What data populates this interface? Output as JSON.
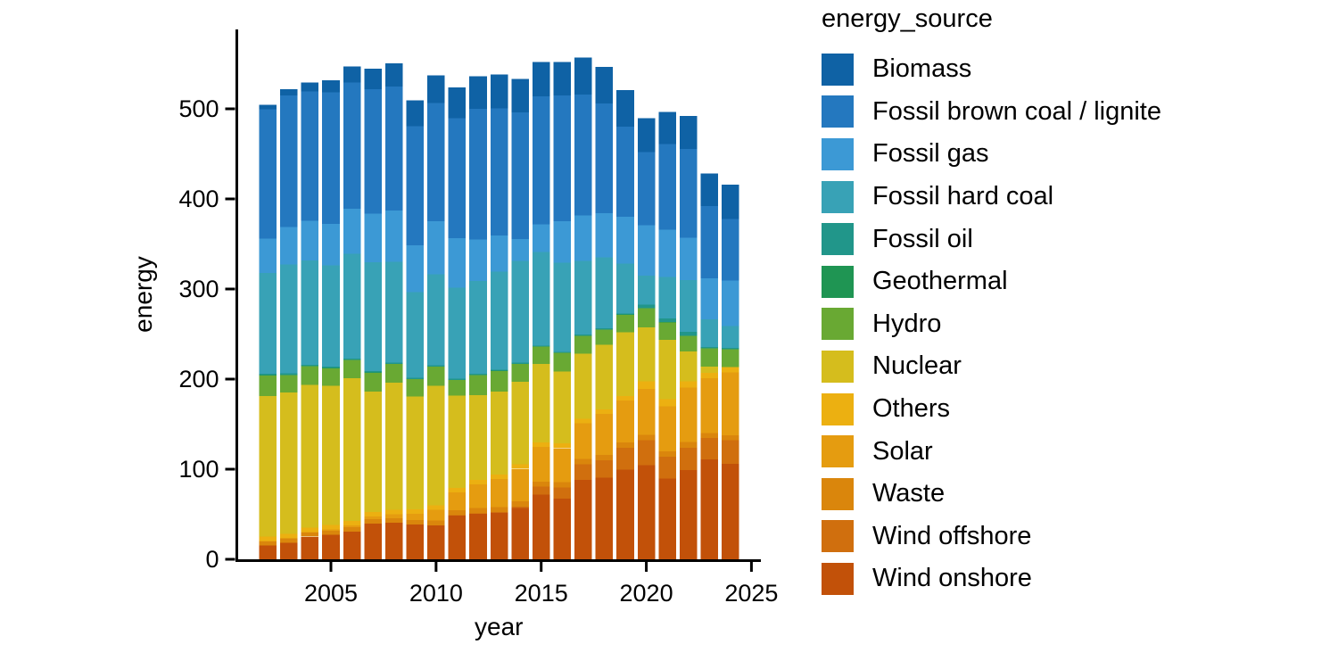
{
  "legend": {
    "title": "energy_source"
  },
  "axes": {
    "xlabel": "year",
    "ylabel": "energy",
    "x_ticks": [
      2005,
      2010,
      2015,
      2020,
      2025
    ],
    "y_ticks": [
      0,
      100,
      200,
      300,
      400,
      500
    ],
    "axis_color": "#000000",
    "background": "#ffffff"
  },
  "chart_data": {
    "type": "bar",
    "stacked": true,
    "title": "",
    "xlabel": "year",
    "ylabel": "energy",
    "xlim": [
      2001,
      2025.5
    ],
    "ylim": [
      0,
      588
    ],
    "grid": false,
    "legend_position": "right",
    "categories": [
      2002,
      2003,
      2004,
      2005,
      2006,
      2007,
      2008,
      2009,
      2010,
      2011,
      2012,
      2013,
      2014,
      2015,
      2016,
      2017,
      2018,
      2019,
      2020,
      2021,
      2022,
      2023,
      2024
    ],
    "stack_order_note": "series listed top-of-stack first (legend order); rendered bottom-up in reverse order",
    "series": [
      {
        "name": "Biomass",
        "color": "#0f62a5",
        "values": [
          5,
          7,
          9.5,
          13.5,
          17.5,
          23,
          26,
          29,
          31,
          34,
          36.5,
          37.5,
          37,
          38,
          37,
          41,
          40.5,
          41,
          37.5,
          36,
          36.5,
          36,
          38
        ]
      },
      {
        "name": "Fossil brown coal / lignite",
        "color": "#2478bf",
        "values": [
          143.5,
          146,
          144,
          146,
          140.5,
          138,
          137.5,
          132,
          131,
          133,
          145,
          141,
          140.5,
          142.4,
          139.5,
          134.5,
          122,
          100,
          81,
          95,
          99,
          80.5,
          68.5
        ]
      },
      {
        "name": "Fossil gas",
        "color": "#3c99d5",
        "values": [
          38,
          41.5,
          44,
          46,
          50,
          54,
          57,
          52,
          59,
          55,
          46,
          40,
          24.5,
          30.6,
          46.5,
          50.5,
          49,
          52,
          56,
          52.5,
          47,
          45.5,
          50.5
        ]
      },
      {
        "name": "Fossil hard coal",
        "color": "#38a2b6",
        "values": [
          112,
          121,
          115.5,
          112.5,
          116,
          121,
          112,
          95,
          101,
          101,
          103,
          109,
          113,
          103.8,
          98.6,
          81.6,
          78.7,
          55.2,
          32.3,
          46,
          57,
          30.5,
          24
        ]
      },
      {
        "name": "Fossil oil",
        "color": "#21968a",
        "values": [
          1.6,
          1.7,
          1.6,
          1.7,
          1.7,
          1.6,
          1.5,
          1.5,
          1.4,
          1.4,
          1.4,
          1.3,
          1.3,
          1.2,
          1.2,
          1.2,
          1.2,
          1.1,
          4,
          4,
          4.5,
          1.5,
          1.5
        ]
      },
      {
        "name": "Geothermal",
        "color": "#1f9553",
        "values": [
          0.1,
          0.1,
          0.1,
          0.1,
          0.1,
          0.1,
          0.1,
          0.1,
          0.1,
          0.1,
          0.1,
          0.1,
          0.1,
          0.1,
          0.2,
          0.2,
          0.2,
          0.2,
          0.2,
          0.2,
          0.2,
          0.2,
          0.2
        ]
      },
      {
        "name": "Hydro",
        "color": "#69a933",
        "values": [
          23,
          19,
          20.5,
          19.5,
          20,
          21,
          20.5,
          19,
          21,
          17.5,
          22,
          23,
          19.5,
          19,
          20.5,
          20,
          16.5,
          19.3,
          21,
          19.5,
          17.5,
          20,
          19.5
        ]
      },
      {
        "name": "Nuclear",
        "color": "#d5bd1d",
        "values": [
          156,
          157,
          158.5,
          154.5,
          158.5,
          133.5,
          141,
          125.5,
          133,
          102.5,
          94,
          92,
          92,
          87,
          80,
          72,
          72,
          71,
          60,
          65.5,
          33,
          7,
          0
        ]
      },
      {
        "name": "Others",
        "color": "#ecb011",
        "values": [
          5,
          5,
          5,
          5,
          5,
          5,
          5,
          5,
          5,
          5,
          5,
          5,
          5,
          5,
          5,
          5,
          5,
          5,
          8.5,
          8,
          7,
          6,
          6
        ]
      },
      {
        "name": "Solar",
        "color": "#e59c10",
        "values": [
          0.2,
          0.3,
          0.6,
          1.3,
          2.2,
          3.1,
          4.4,
          6.6,
          11.7,
          19.5,
          26.5,
          31,
          36,
          38.5,
          38,
          39.5,
          45.5,
          46.5,
          51,
          50,
          60.5,
          61,
          70
        ]
      },
      {
        "name": "Waste",
        "color": "#da860c",
        "values": [
          4.5,
          4.6,
          4.7,
          4.8,
          4.9,
          5,
          5.2,
          5.3,
          5.4,
          5.5,
          5.6,
          5.7,
          5.8,
          5.9,
          6,
          6,
          5.9,
          5.7,
          6,
          6,
          6,
          5.5,
          5.5
        ]
      },
      {
        "name": "Wind offshore",
        "color": "#d06f0e",
        "values": [
          0,
          0,
          0,
          0,
          0,
          0,
          0,
          0,
          0.2,
          0.6,
          0.7,
          0.9,
          1.4,
          8.5,
          12,
          17.5,
          19.5,
          24.5,
          27.5,
          24.5,
          25,
          23.5,
          26
        ]
      },
      {
        "name": "Wind onshore",
        "color": "#c25109",
        "values": [
          15.5,
          18.5,
          25,
          27,
          30.5,
          39.5,
          40.5,
          38.5,
          37.5,
          48.5,
          50.5,
          51.5,
          57,
          72,
          67.5,
          88,
          90.5,
          99.5,
          104.5,
          89.5,
          99,
          111,
          106
        ]
      }
    ]
  }
}
